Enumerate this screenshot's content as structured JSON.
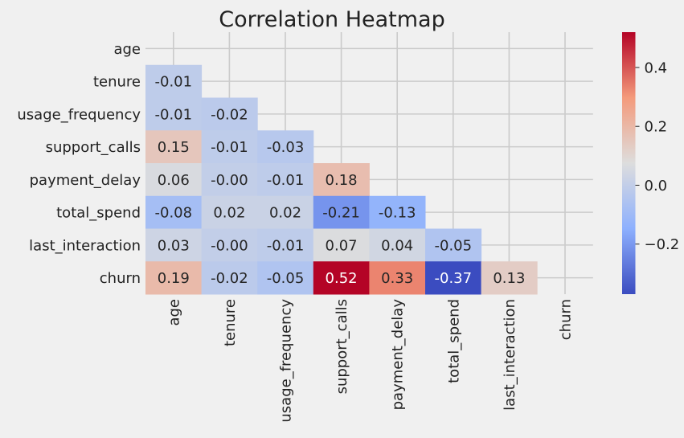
{
  "chart_data": {
    "type": "heatmap",
    "title": "Correlation Heatmap",
    "rows": [
      "age",
      "tenure",
      "usage_frequency",
      "support_calls",
      "payment_delay",
      "total_spend",
      "last_interaction",
      "churn"
    ],
    "columns": [
      "age",
      "tenure",
      "usage_frequency",
      "support_calls",
      "payment_delay",
      "total_spend",
      "last_interaction",
      "churn"
    ],
    "mask": "upper-triangle-including-diagonal",
    "values": [
      [
        null,
        null,
        null,
        null,
        null,
        null,
        null,
        null
      ],
      [
        -0.01,
        null,
        null,
        null,
        null,
        null,
        null,
        null
      ],
      [
        -0.01,
        -0.02,
        null,
        null,
        null,
        null,
        null,
        null
      ],
      [
        0.15,
        -0.01,
        -0.03,
        null,
        null,
        null,
        null,
        null
      ],
      [
        0.06,
        -0.0,
        -0.01,
        0.18,
        null,
        null,
        null,
        null
      ],
      [
        -0.08,
        0.02,
        0.02,
        -0.21,
        -0.13,
        null,
        null,
        null
      ],
      [
        0.03,
        -0.0,
        -0.01,
        0.07,
        0.04,
        -0.05,
        null,
        null
      ],
      [
        0.19,
        -0.02,
        -0.05,
        0.52,
        0.33,
        -0.37,
        0.13,
        null
      ]
    ],
    "value_labels": [
      [
        null,
        null,
        null,
        null,
        null,
        null,
        null,
        null
      ],
      [
        "-0.01",
        null,
        null,
        null,
        null,
        null,
        null,
        null
      ],
      [
        "-0.01",
        "-0.02",
        null,
        null,
        null,
        null,
        null,
        null
      ],
      [
        "0.15",
        "-0.01",
        "-0.03",
        null,
        null,
        null,
        null,
        null
      ],
      [
        "0.06",
        "-0.00",
        "-0.01",
        "0.18",
        null,
        null,
        null,
        null
      ],
      [
        "-0.08",
        "0.02",
        "0.02",
        "-0.21",
        "-0.13",
        null,
        null,
        null
      ],
      [
        "0.03",
        "-0.00",
        "-0.01",
        "0.07",
        "0.04",
        "-0.05",
        null,
        null
      ],
      [
        "0.19",
        "-0.02",
        "-0.05",
        "0.52",
        "0.33",
        "-0.37",
        "0.13",
        null
      ]
    ],
    "colormap": "coolwarm",
    "color_range": [
      -0.37,
      0.52
    ],
    "colorbar_ticks": [
      {
        "value": 0.4,
        "label": "0.4"
      },
      {
        "value": 0.2,
        "label": "0.2"
      },
      {
        "value": 0.0,
        "label": "0.0"
      },
      {
        "value": -0.2,
        "label": "−0.2"
      }
    ],
    "grid": true,
    "colors": {
      "background": "#f0f0f0",
      "grid": "#cbcbcb",
      "text": "#222222"
    }
  }
}
